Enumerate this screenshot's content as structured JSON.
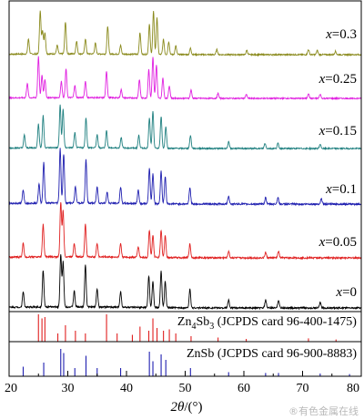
{
  "chart_data": {
    "type": "line",
    "title": "",
    "xlabel_main": "2θ",
    "xlabel_unit": "/(°)",
    "xlim": [
      20,
      80
    ],
    "x_ticks": [
      20,
      30,
      40,
      50,
      60,
      70,
      80
    ],
    "x_tick_labels": [
      "20",
      "30",
      "40",
      "50",
      "60",
      "70",
      "80"
    ],
    "grid": false,
    "series": [
      {
        "label_var": "x",
        "label_val": "=0.3",
        "color": "#8b8b1e",
        "peaks": [
          [
            23.3,
            0.35
          ],
          [
            25.3,
            1.0
          ],
          [
            25.7,
            0.55
          ],
          [
            26.1,
            0.5
          ],
          [
            28.2,
            0.2
          ],
          [
            29.6,
            0.75
          ],
          [
            31.5,
            0.3
          ],
          [
            33.0,
            0.35
          ],
          [
            34.7,
            0.25
          ],
          [
            36.8,
            0.65
          ],
          [
            39.0,
            0.2
          ],
          [
            42.3,
            0.5
          ],
          [
            43.9,
            0.7
          ],
          [
            44.6,
            1.0
          ],
          [
            45.2,
            0.85
          ],
          [
            46.3,
            0.35
          ],
          [
            47.2,
            0.3
          ],
          [
            48.4,
            0.2
          ],
          [
            50.9,
            0.15
          ],
          [
            55.4,
            0.12
          ],
          [
            60.5,
            0.1
          ],
          [
            71.0,
            0.12
          ],
          [
            72.5,
            0.1
          ],
          [
            75.6,
            0.08
          ]
        ]
      },
      {
        "label_var": "x",
        "label_val": "=0.25",
        "color": "#e020e0",
        "peaks": [
          [
            23.1,
            0.35
          ],
          [
            25.0,
            1.0
          ],
          [
            25.6,
            0.55
          ],
          [
            26.1,
            0.45
          ],
          [
            28.9,
            0.4
          ],
          [
            29.7,
            0.7
          ],
          [
            31.2,
            0.3
          ],
          [
            33.0,
            0.4
          ],
          [
            36.6,
            0.65
          ],
          [
            39.1,
            0.2
          ],
          [
            42.2,
            0.45
          ],
          [
            43.8,
            0.7
          ],
          [
            44.5,
            1.0
          ],
          [
            45.1,
            0.8
          ],
          [
            46.2,
            0.5
          ],
          [
            47.3,
            0.3
          ],
          [
            51.0,
            0.2
          ],
          [
            55.6,
            0.12
          ],
          [
            60.4,
            0.1
          ],
          [
            71.0,
            0.12
          ],
          [
            73.0,
            0.1
          ]
        ]
      },
      {
        "label_var": "x",
        "label_val": "=0.15",
        "color": "#208080",
        "peaks": [
          [
            22.6,
            0.3
          ],
          [
            25.0,
            0.55
          ],
          [
            25.8,
            0.75
          ],
          [
            28.7,
            1.0
          ],
          [
            29.2,
            0.9
          ],
          [
            31.2,
            0.35
          ],
          [
            33.1,
            0.7
          ],
          [
            35.0,
            0.3
          ],
          [
            36.6,
            0.4
          ],
          [
            39.1,
            0.25
          ],
          [
            42.1,
            0.3
          ],
          [
            43.9,
            0.7
          ],
          [
            44.5,
            0.85
          ],
          [
            45.9,
            0.75
          ],
          [
            46.7,
            0.5
          ],
          [
            50.9,
            0.3
          ],
          [
            57.4,
            0.15
          ],
          [
            63.6,
            0.12
          ],
          [
            65.8,
            0.12
          ],
          [
            73.0,
            0.1
          ]
        ]
      },
      {
        "label_var": "x",
        "label_val": "=0.1",
        "color": "#2020b0",
        "peaks": [
          [
            22.4,
            0.25
          ],
          [
            25.1,
            0.35
          ],
          [
            25.9,
            0.75
          ],
          [
            28.7,
            1.0
          ],
          [
            29.3,
            0.9
          ],
          [
            31.3,
            0.3
          ],
          [
            33.1,
            0.8
          ],
          [
            35.0,
            0.3
          ],
          [
            36.7,
            0.2
          ],
          [
            39.0,
            0.3
          ],
          [
            42.0,
            0.25
          ],
          [
            43.9,
            0.65
          ],
          [
            44.5,
            0.55
          ],
          [
            45.9,
            0.6
          ],
          [
            46.6,
            0.5
          ],
          [
            50.8,
            0.3
          ],
          [
            57.4,
            0.15
          ],
          [
            63.7,
            0.12
          ],
          [
            65.8,
            0.12
          ],
          [
            73.2,
            0.1
          ]
        ]
      },
      {
        "label_var": "x",
        "label_val": "=0.05",
        "color": "#e02020",
        "peaks": [
          [
            22.4,
            0.25
          ],
          [
            25.8,
            0.6
          ],
          [
            28.8,
            1.0
          ],
          [
            29.2,
            0.85
          ],
          [
            31.1,
            0.25
          ],
          [
            33.0,
            0.6
          ],
          [
            35.0,
            0.25
          ],
          [
            39.0,
            0.25
          ],
          [
            42.0,
            0.2
          ],
          [
            43.9,
            0.5
          ],
          [
            44.5,
            0.4
          ],
          [
            45.9,
            0.5
          ],
          [
            46.6,
            0.4
          ],
          [
            50.8,
            0.25
          ],
          [
            57.4,
            0.12
          ],
          [
            63.7,
            0.1
          ],
          [
            65.9,
            0.12
          ]
        ]
      },
      {
        "label_var": "x",
        "label_val": "=0",
        "color": "#000000",
        "peaks": [
          [
            22.4,
            0.3
          ],
          [
            25.8,
            0.7
          ],
          [
            28.8,
            1.0
          ],
          [
            29.2,
            0.85
          ],
          [
            31.1,
            0.3
          ],
          [
            33.0,
            0.8
          ],
          [
            35.0,
            0.35
          ],
          [
            39.0,
            0.3
          ],
          [
            43.8,
            0.6
          ],
          [
            44.5,
            0.5
          ],
          [
            45.9,
            0.7
          ],
          [
            46.6,
            0.5
          ],
          [
            50.8,
            0.35
          ],
          [
            57.4,
            0.15
          ],
          [
            63.7,
            0.15
          ],
          [
            65.9,
            0.15
          ],
          [
            73.0,
            0.1
          ]
        ]
      }
    ],
    "reference_cards": [
      {
        "label_html_parts": [
          "Zn",
          "4",
          "Sb",
          "3",
          " (JCPDS card 96-400-1475)"
        ],
        "color": "#e02020",
        "lines": [
          [
            25.0,
            1.0
          ],
          [
            25.6,
            0.85
          ],
          [
            26.1,
            0.9
          ],
          [
            28.3,
            0.3
          ],
          [
            29.6,
            0.6
          ],
          [
            31.3,
            0.4
          ],
          [
            33.0,
            0.3
          ],
          [
            36.6,
            1.0
          ],
          [
            38.4,
            0.3
          ],
          [
            41.0,
            0.25
          ],
          [
            42.3,
            0.55
          ],
          [
            43.8,
            0.4
          ],
          [
            44.5,
            0.85
          ],
          [
            45.2,
            0.5
          ],
          [
            46.3,
            0.4
          ],
          [
            47.3,
            0.45
          ],
          [
            48.4,
            0.3
          ],
          [
            51.0,
            0.2
          ],
          [
            55.6,
            0.15
          ],
          [
            60.4,
            0.1
          ],
          [
            71.0,
            0.12
          ],
          [
            75.7,
            0.08
          ]
        ]
      },
      {
        "label": "ZnSb (JCPDS card 96-900-8883)",
        "color": "#2020b0",
        "lines": [
          [
            22.4,
            0.35
          ],
          [
            25.9,
            0.5
          ],
          [
            28.8,
            1.0
          ],
          [
            29.3,
            0.85
          ],
          [
            31.2,
            0.3
          ],
          [
            33.1,
            0.75
          ],
          [
            35.0,
            0.3
          ],
          [
            39.0,
            0.3
          ],
          [
            43.9,
            0.9
          ],
          [
            44.5,
            0.55
          ],
          [
            45.9,
            0.8
          ],
          [
            46.7,
            0.6
          ],
          [
            50.9,
            0.3
          ],
          [
            57.4,
            0.15
          ],
          [
            63.7,
            0.12
          ],
          [
            65.9,
            0.12
          ],
          [
            73.0,
            0.1
          ],
          [
            78.0,
            0.08
          ]
        ]
      }
    ]
  },
  "watermark": "®有色金属在线"
}
